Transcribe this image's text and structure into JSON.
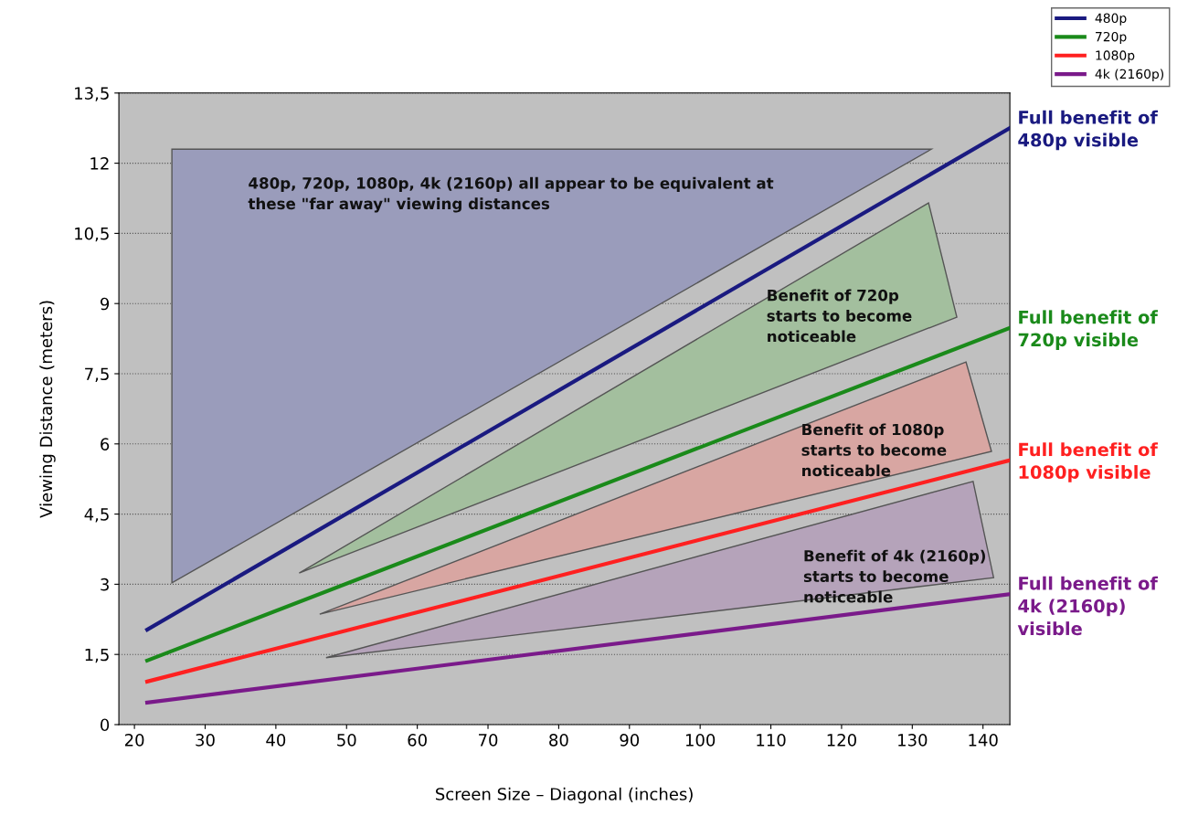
{
  "chart_data": {
    "type": "line",
    "xlabel": "Screen Size – Diagonal (inches)",
    "ylabel": "Viewing Distance (meters)",
    "xlim": [
      17.8,
      143.8
    ],
    "ylim": [
      0,
      13.5
    ],
    "xticks": [
      20,
      30,
      40,
      50,
      60,
      70,
      80,
      90,
      100,
      110,
      120,
      130,
      140
    ],
    "yticks": [
      0,
      {
        "value": 1.5,
        "label": "1,5"
      },
      3,
      {
        "value": 4.5,
        "label": "4,5"
      },
      6,
      {
        "value": 7.5,
        "label": "7,5"
      },
      9,
      {
        "value": 10.5,
        "label": "10,5"
      },
      12,
      {
        "value": 13.5,
        "label": "13,5"
      }
    ],
    "grid": "y",
    "legend": "top right",
    "line_style": "solid",
    "marker": "none",
    "series": [
      {
        "type": "area",
        "color": "#9a9cbb",
        "x": [
          25.3,
          25.3,
          132.7
        ],
        "values": [
          3.03,
          12.3,
          12.3
        ]
      },
      {
        "type": "area",
        "color": "#a3bf9e",
        "x": [
          43.3,
          132.3,
          136.3
        ],
        "values": [
          3.24,
          11.15,
          8.71
        ]
      },
      {
        "type": "area",
        "color": "#d8a6a2",
        "x": [
          46.2,
          137.6,
          141.2
        ],
        "values": [
          2.36,
          7.75,
          5.84
        ]
      },
      {
        "type": "area",
        "color": "#b5a3ba",
        "x": [
          47.1,
          138.6,
          141.5
        ],
        "values": [
          1.43,
          5.2,
          3.14
        ]
      },
      {
        "name": "480p",
        "color": "#1a1a80",
        "x": [
          21.8,
          143.8
        ],
        "values": [
          2.03,
          12.75
        ]
      },
      {
        "name": "720p",
        "color": "#1a8a1a",
        "x": [
          21.8,
          143.8
        ],
        "values": [
          1.37,
          8.48
        ]
      },
      {
        "name": "1080p",
        "color": "#ff2020",
        "x": [
          21.8,
          143.8
        ],
        "values": [
          0.92,
          5.65
        ]
      },
      {
        "name": "4k (2160p)",
        "color": "#7a1a8a",
        "x": [
          21.8,
          143.8
        ],
        "values": [
          0.47,
          2.79
        ]
      }
    ],
    "annotations": [
      "480p, 720p, 1080p, 4k (2160p) all appear to be equivalent at\nthese \"far away\" viewing distances",
      "Benefit of 720p\nstarts to become\nnoticeable",
      "Benefit of 1080p\nstarts to become\nnoticeable",
      "Benefit of 4k (2160p)\nstarts to become\nnoticeable",
      "Full benefit of\n480p visible",
      "Full benefit of\n720p visible",
      "Full benefit of\n1080p visible",
      "Full benefit of\n4k (2160p)\nvisible"
    ]
  }
}
